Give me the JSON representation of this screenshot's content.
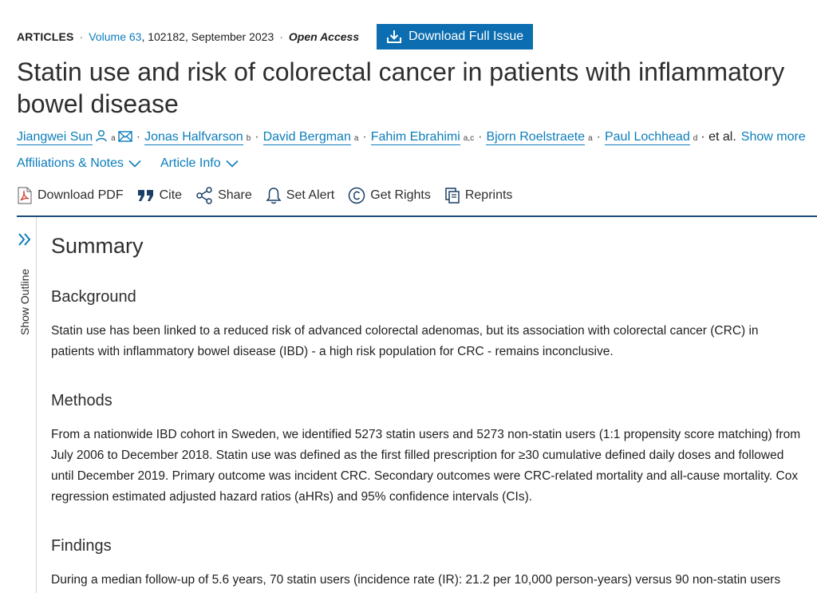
{
  "meta": {
    "type": "ARTICLES",
    "volume": "Volume 63",
    "volume_info": ", 102182, September 2023",
    "open_access": "Open Access",
    "download_issue": "Download Full Issue"
  },
  "title": "Statin use and risk of colorectal cancer in patients with inflammatory bowel disease",
  "authors": [
    {
      "name": "Jiangwei Sun",
      "sup": "a"
    },
    {
      "name": "Jonas Halfvarson",
      "sup": "b"
    },
    {
      "name": "David Bergman",
      "sup": "a"
    },
    {
      "name": "Fahim Ebrahimi",
      "sup": "a,c"
    },
    {
      "name": "Bjorn Roelstraete",
      "sup": "a"
    },
    {
      "name": "Paul Lochhead",
      "sup": "d"
    }
  ],
  "authors_etal": "· et al.",
  "authors_more": "Show more",
  "info_links": {
    "affiliations": "Affiliations & Notes",
    "article_info": "Article Info"
  },
  "toolbar": {
    "download_pdf": "Download PDF",
    "cite": "Cite",
    "share": "Share",
    "set_alert": "Set Alert",
    "get_rights": "Get Rights",
    "reprints": "Reprints"
  },
  "outline": {
    "label": "Show Outline"
  },
  "summary": {
    "heading": "Summary",
    "background_heading": "Background",
    "background_text": "Statin use has been linked to a reduced risk of advanced colorectal adenomas, but its association with colorectal cancer (CRC) in patients with inflammatory bowel disease (IBD) - a high risk population for CRC - remains inconclusive.",
    "methods_heading": "Methods",
    "methods_text": "From a nationwide IBD cohort in Sweden, we identified 5273 statin users and 5273 non-statin users (1:1 propensity score matching) from July 2006 to December 2018. Statin use was defined as the first filled prescription for ≥30 cumulative defined daily doses and followed until December 2019. Primary outcome was incident CRC. Secondary outcomes were CRC-related mortality and all-cause mortality. Cox regression estimated adjusted hazard ratios (aHRs) and 95% confidence intervals (CIs).",
    "findings_heading": "Findings",
    "findings_text": "During a median follow-up of 5.6 years, 70 statin users (incidence rate (IR): 21.2 per 10,000 person-years) versus 90 non-statin users"
  },
  "colors": {
    "link": "#0c7dbb",
    "button": "#0c6eb0",
    "divider": "#1a4d7c"
  }
}
